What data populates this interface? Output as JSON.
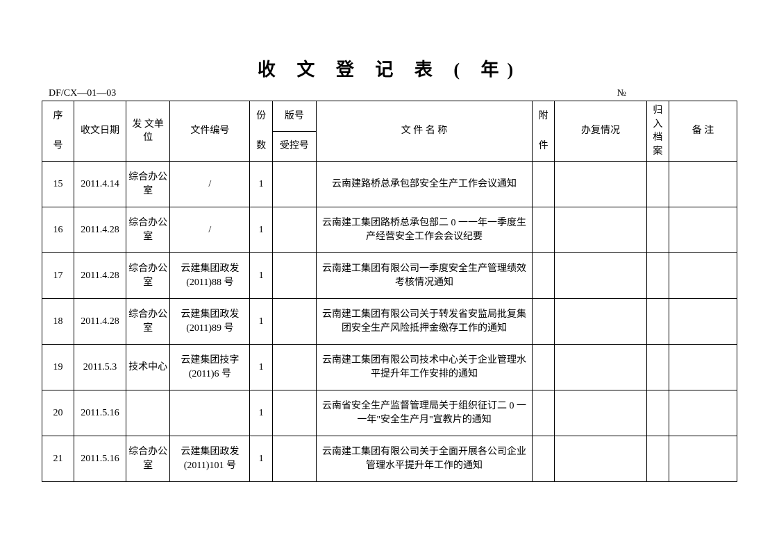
{
  "title": "收 文 登 记 表 (     年)",
  "form_code": "DF/CX—01—03",
  "number_symbol": "№",
  "columns": {
    "seq": "序号",
    "seq_t": "序",
    "seq_b": "号",
    "date": "收文日期",
    "sender": "发  文单  位",
    "docno": "文件编号",
    "copies_t": "份",
    "copies_b": "数",
    "version_t": "版号",
    "version_b": "受控号",
    "name": "文 件 名 称",
    "attach": "附件",
    "attach_t": "附",
    "attach_b": "件",
    "reply": "办复情况",
    "archive": "归入档案",
    "remark": "备  注"
  },
  "rows": [
    {
      "seq": "15",
      "date": "2011.4.14",
      "sender": "综合办公室",
      "docno": "/",
      "copies": "1",
      "version": "",
      "name": "云南建路桥总承包部安全生产工作会议通知",
      "attach": "",
      "reply": "",
      "archive": "",
      "remark": ""
    },
    {
      "seq": "16",
      "date": "2011.4.28",
      "sender": "综合办公室",
      "docno": "/",
      "copies": "1",
      "version": "",
      "name": "云南建工集团路桥总承包部二 0 一一年一季度生产经营安全工作会会议纪要",
      "attach": "",
      "reply": "",
      "archive": "",
      "remark": ""
    },
    {
      "seq": "17",
      "date": "2011.4.28",
      "sender": "综合办公室",
      "docno": "云建集团政发(2011)88 号",
      "copies": "1",
      "version": "",
      "name": "云南建工集团有限公司一季度安全生产管理绩效考核情况通知",
      "attach": "",
      "reply": "",
      "archive": "",
      "remark": ""
    },
    {
      "seq": "18",
      "date": "2011.4.28",
      "sender": "综合办公室",
      "docno": "云建集团政发(2011)89 号",
      "copies": "1",
      "version": "",
      "name": "云南建工集团有限公司关于转发省安监局批复集团安全生产风险抵押金缴存工作的通知",
      "attach": "",
      "reply": "",
      "archive": "",
      "remark": ""
    },
    {
      "seq": "19",
      "date": "2011.5.3",
      "sender": "技术中心",
      "docno": "云建集团技字(2011)6 号",
      "copies": "1",
      "version": "",
      "name": "云南建工集团有限公司技术中心关于企业管理水平提升年工作安排的通知",
      "attach": "",
      "reply": "",
      "archive": "",
      "remark": ""
    },
    {
      "seq": "20",
      "date": "2011.5.16",
      "sender": "",
      "docno": "",
      "copies": "1",
      "version": "",
      "name": "云南省安全生产监督管理局关于组织征订二 0 一一年\"安全生产月\"宣教片的通知",
      "attach": "",
      "reply": "",
      "archive": "",
      "remark": ""
    },
    {
      "seq": "21",
      "date": "2011.5.16",
      "sender": "综合办公室",
      "docno": "云建集团政发(2011)101 号",
      "copies": "1",
      "version": "",
      "name": "云南建工集团有限公司关于全面开展各公司企业管理水平提升年工作的通知",
      "attach": "",
      "reply": "",
      "archive": "",
      "remark": ""
    }
  ]
}
